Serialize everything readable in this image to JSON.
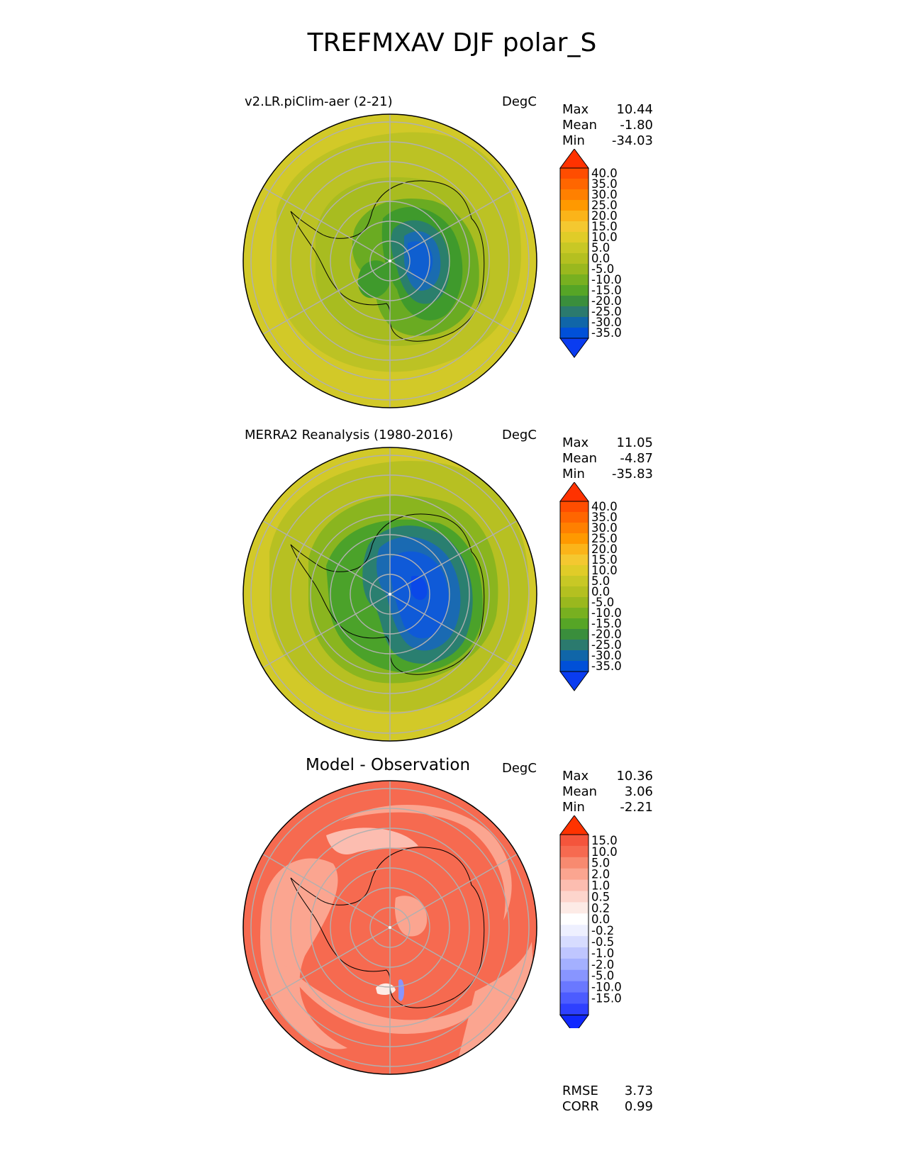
{
  "title": "TREFMXAV DJF polar_S",
  "panels": [
    {
      "label": "v2.LR.piClim-aer (2-21)",
      "units": "DegC",
      "stats": [
        {
          "name": "Max",
          "value": "10.44"
        },
        {
          "name": "Mean",
          "value": "-1.80"
        },
        {
          "name": "Min",
          "value": "-34.03"
        }
      ]
    },
    {
      "label": "MERRA2 Reanalysis (1980-2016)",
      "units": "DegC",
      "stats": [
        {
          "name": "Max",
          "value": "11.05"
        },
        {
          "name": "Mean",
          "value": "-4.87"
        },
        {
          "name": "Min",
          "value": "-35.83"
        }
      ]
    },
    {
      "label": "Model - Observation",
      "units": "DegC",
      "stats": [
        {
          "name": "Max",
          "value": "10.36"
        },
        {
          "name": "Mean",
          "value": "3.06"
        },
        {
          "name": "Min",
          "value": "-2.21"
        }
      ]
    }
  ],
  "colorbar_temp": {
    "labels": [
      "40.0",
      "35.0",
      "30.0",
      "25.0",
      "20.0",
      "15.0",
      "10.0",
      "5.0",
      "0.0",
      "-5.0",
      "-10.0",
      "-15.0",
      "-20.0",
      "-25.0",
      "-30.0",
      "-35.0"
    ],
    "colors": [
      "#ff3200",
      "#ff4d00",
      "#ff6600",
      "#ff8000",
      "#ff9900",
      "#fbb419",
      "#f4c830",
      "#e0cc28",
      "#c8c825",
      "#b4c020",
      "#9ab81e",
      "#78b020",
      "#56a526",
      "#3a8e3c",
      "#2b7a6e",
      "#1066a8",
      "#0050d8",
      "#0a3cf0"
    ]
  },
  "colorbar_diff": {
    "labels": [
      "15.0",
      "10.0",
      "5.0",
      "2.0",
      "1.0",
      "0.5",
      "0.2",
      "0.0",
      "-0.2",
      "-0.5",
      "-1.0",
      "-2.0",
      "-5.0",
      "-10.0",
      "-15.0"
    ],
    "colors": [
      "#ff3300",
      "#f4553c",
      "#f66a50",
      "#f88a70",
      "#fba590",
      "#fcbdb0",
      "#fdd5cc",
      "#fdebe6",
      "#ffffff",
      "#eef0ff",
      "#d7dcff",
      "#bfc6ff",
      "#a4b0ff",
      "#8895ff",
      "#6a78ff",
      "#4c5cff",
      "#2e40ff",
      "#1028ff"
    ]
  },
  "footer": [
    {
      "name": "RMSE",
      "value": "3.73"
    },
    {
      "name": "CORR",
      "value": "0.99"
    }
  ]
}
